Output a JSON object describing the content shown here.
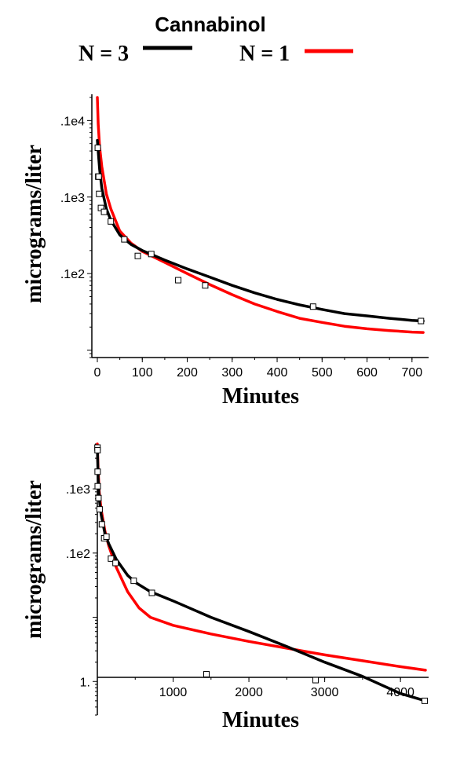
{
  "figure": {
    "title": "Cannabinol",
    "legend": [
      {
        "label": "N = 3",
        "color": "#000000"
      },
      {
        "label": "N = 1",
        "color": "#ff0000"
      }
    ]
  },
  "chart_data": [
    {
      "type": "scatter",
      "xlabel": "Minutes",
      "ylabel": "micrograms/liter",
      "xlim": [
        0,
        730
      ],
      "ylog": true,
      "ylim": [
        8,
        22000
      ],
      "xticks": [
        0,
        100,
        200,
        300,
        400,
        500,
        600,
        700
      ],
      "yticks": [
        {
          "value": 100,
          "label": ".1e2"
        },
        {
          "value": 1000,
          "label": ".1e3"
        },
        {
          "value": 10000,
          "label": ".1e4"
        }
      ],
      "points": {
        "x": [
          1,
          2,
          3,
          4,
          8,
          15,
          30,
          60,
          90,
          120,
          180,
          240,
          480,
          720
        ],
        "y": [
          4400,
          1850,
          1850,
          1100,
          720,
          640,
          480,
          280,
          170,
          180,
          82,
          70,
          37,
          24
        ]
      },
      "series": [
        {
          "name": "N = 3",
          "color": "#000000",
          "x": [
            0,
            5,
            10,
            20,
            30,
            50,
            75,
            100,
            150,
            200,
            250,
            300,
            350,
            400,
            450,
            500,
            550,
            600,
            650,
            700,
            725
          ],
          "y": [
            5500,
            2300,
            1300,
            700,
            500,
            320,
            240,
            200,
            150,
            115,
            90,
            70,
            56,
            46,
            39,
            34,
            30,
            28,
            26,
            24.5,
            24
          ]
        },
        {
          "name": "N = 1",
          "color": "#ff0000",
          "x": [
            0,
            2,
            5,
            10,
            20,
            30,
            50,
            75,
            100,
            150,
            200,
            250,
            300,
            350,
            400,
            450,
            500,
            550,
            600,
            650,
            700,
            725
          ],
          "y": [
            20000,
            9000,
            4500,
            2500,
            1100,
            700,
            360,
            250,
            195,
            140,
            100,
            72,
            53,
            40,
            32,
            26,
            23,
            20.5,
            19,
            18,
            17.2,
            17
          ]
        }
      ]
    },
    {
      "type": "scatter",
      "xlabel": "Minutes",
      "ylabel": "micrograms/liter",
      "xlim": [
        0,
        4330
      ],
      "ylog": true,
      "ylim": [
        0.3,
        5000
      ],
      "xticks": [
        1000,
        2000,
        3000,
        4000
      ],
      "yticks": [
        {
          "value": 1,
          "label": "1."
        },
        {
          "value": 100,
          "label": ".1e2"
        },
        {
          "value": 1000,
          "label": ".1e3"
        }
      ],
      "points": {
        "x": [
          2,
          3,
          4,
          5,
          15,
          30,
          60,
          90,
          120,
          180,
          240,
          480,
          720,
          1440,
          2880,
          4320
        ],
        "y": [
          4400,
          4000,
          1850,
          1100,
          720,
          480,
          280,
          170,
          180,
          82,
          70,
          37,
          24,
          1.3,
          1.05,
          0.5
        ]
      },
      "series": [
        {
          "name": "N = 3",
          "color": "#000000",
          "x": [
            0,
            10,
            25,
            50,
            100,
            150,
            250,
            400,
            500,
            700,
            1000,
            1500,
            2000,
            2500,
            3000,
            3500,
            4000,
            4330
          ],
          "y": [
            4400,
            1500,
            700,
            400,
            200,
            140,
            80,
            45,
            35,
            25,
            18,
            10,
            6,
            3.5,
            2,
            1.2,
            0.65,
            0.5
          ]
        },
        {
          "name": "N = 1",
          "color": "#ff0000",
          "x": [
            0,
            10,
            25,
            50,
            100,
            150,
            250,
            400,
            550,
            700,
            1000,
            1500,
            2000,
            2500,
            3000,
            3500,
            4000,
            4330
          ],
          "y": [
            5000,
            2000,
            900,
            480,
            220,
            130,
            60,
            25,
            14,
            10,
            7.5,
            5.5,
            4.2,
            3.3,
            2.6,
            2.1,
            1.7,
            1.5
          ]
        }
      ]
    }
  ]
}
